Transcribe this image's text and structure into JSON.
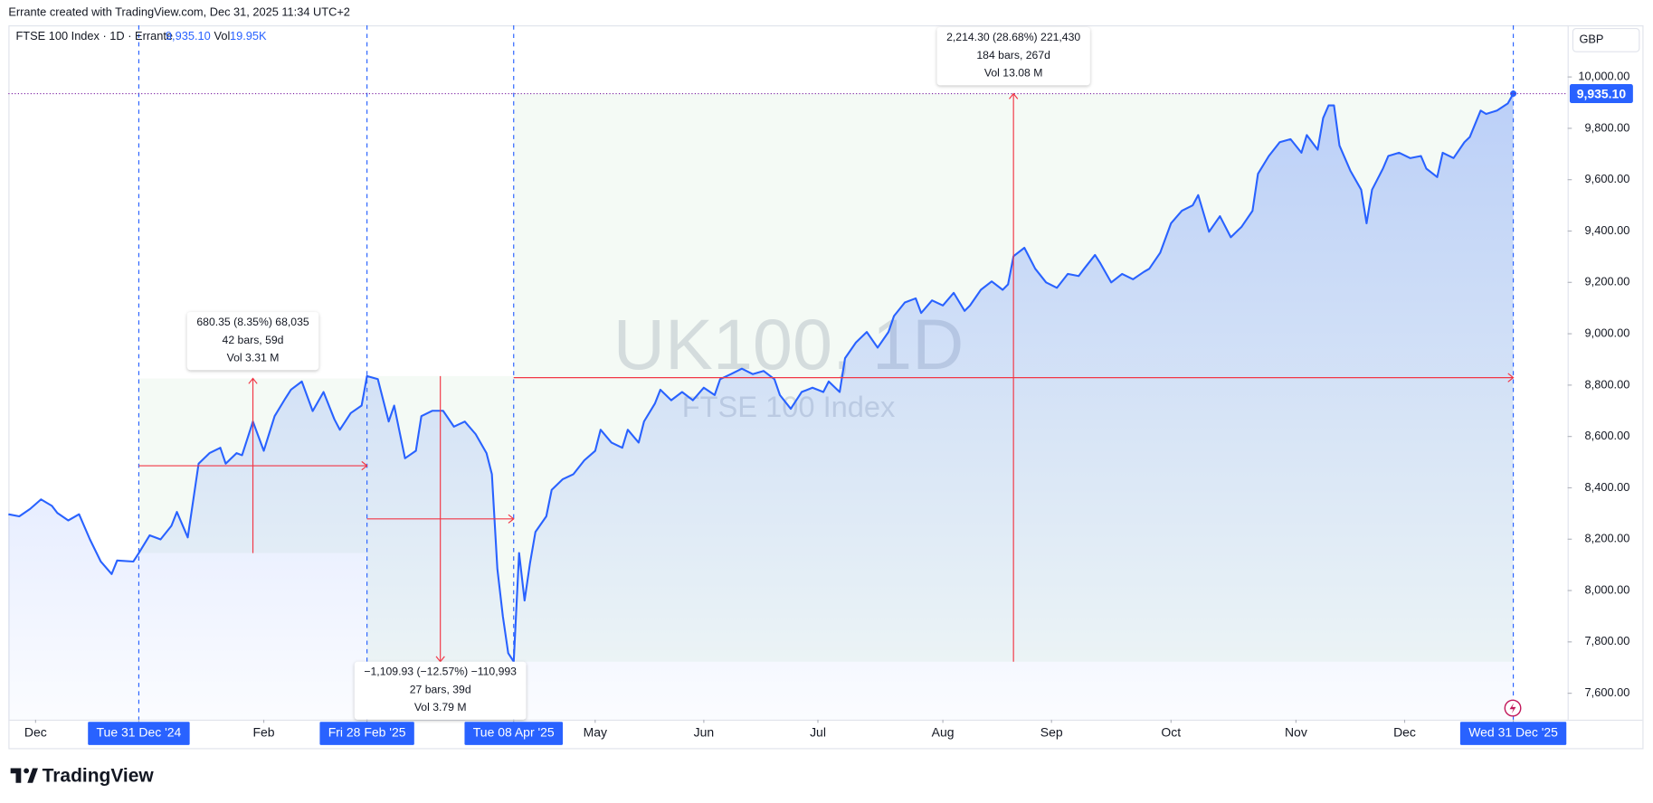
{
  "header": {
    "credit": "Errante created with TradingView.com, Dec 31, 2025 11:34 UTC+2",
    "symbol": "FTSE 100 Index · 1D · Errante",
    "last": "9,935.10",
    "vol_label": "Vol",
    "vol": "19.95K",
    "currency": "GBP",
    "watermark": "UK100, 1D",
    "watermark_sub": "FTSE 100 Index",
    "brand": "TradingView"
  },
  "chart_data": {
    "type": "line",
    "last_price_label": "9,935.10",
    "grid": false,
    "xlim": [
      0,
      287
    ],
    "ylim": [
      7497,
      10201
    ],
    "xticks": [
      {
        "value": 5,
        "label": "Dec"
      },
      {
        "value": 24,
        "label": "Tue 31 Dec '24"
      },
      {
        "value": 47,
        "label": "Feb"
      },
      {
        "value": 66,
        "label": "Fri 28 Feb '25"
      },
      {
        "value": 93,
        "label": "Tue 08 Apr '25"
      },
      {
        "value": 108,
        "label": "May"
      },
      {
        "value": 128,
        "label": "Jun"
      },
      {
        "value": 149,
        "label": "Jul"
      },
      {
        "value": 172,
        "label": "Aug"
      },
      {
        "value": 192,
        "label": "Sep"
      },
      {
        "value": 214,
        "label": "Oct"
      },
      {
        "value": 237,
        "label": "Nov"
      },
      {
        "value": 257,
        "label": "Dec"
      },
      {
        "value": 277,
        "label": "Wed 31 Dec '25"
      }
    ],
    "yticks": [
      {
        "value": 7600,
        "label": "7,600.00"
      },
      {
        "value": 7800,
        "label": "7,800.00"
      },
      {
        "value": 8000,
        "label": "8,000.00"
      },
      {
        "value": 8200,
        "label": "8,200.00"
      },
      {
        "value": 8400,
        "label": "8,400.00"
      },
      {
        "value": 8600,
        "label": "8,600.00"
      },
      {
        "value": 8800,
        "label": "8,800.00"
      },
      {
        "value": 9000,
        "label": "9,000.00"
      },
      {
        "value": 9200,
        "label": "9,200.00"
      },
      {
        "value": 9400,
        "label": "9,400.00"
      },
      {
        "value": 9600,
        "label": "9,600.00"
      },
      {
        "value": 9800,
        "label": "9,800.00"
      },
      {
        "value": 10000,
        "label": "10,000.00"
      }
    ],
    "series": [
      {
        "name": "FTSE 100 Index",
        "color": "#2962ff",
        "x": [
          0,
          2,
          4,
          6,
          8,
          9,
          11,
          13,
          15,
          17,
          19,
          20,
          23,
          24,
          26,
          28,
          30,
          31,
          33,
          35,
          37,
          39,
          40,
          42,
          43,
          45,
          47,
          49,
          51,
          52,
          54,
          56,
          58,
          60,
          61,
          63,
          65,
          66,
          68,
          70,
          71,
          73,
          75,
          76,
          78,
          80,
          82,
          84,
          86,
          88,
          89,
          90,
          91,
          92,
          93,
          94,
          95,
          96,
          97,
          99,
          100,
          102,
          104,
          106,
          108,
          109,
          111,
          113,
          114,
          116,
          117,
          119,
          120,
          122,
          124,
          126,
          128,
          130,
          131,
          133,
          135,
          137,
          139,
          141,
          142,
          144,
          146,
          148,
          150,
          151,
          153,
          154,
          156,
          158,
          160,
          162,
          163,
          165,
          167,
          168,
          170,
          172,
          174,
          176,
          177,
          179,
          181,
          183,
          184,
          185,
          187,
          189,
          191,
          193,
          195,
          197,
          198,
          200,
          201,
          203,
          205,
          207,
          209,
          210,
          212,
          214,
          216,
          218,
          219,
          221,
          223,
          225,
          227,
          229,
          230,
          232,
          234,
          236,
          238,
          239,
          241,
          242,
          243,
          244,
          245,
          247,
          249,
          250,
          251,
          253,
          254,
          256,
          258,
          260,
          261,
          263,
          264,
          266,
          268,
          269,
          271,
          272,
          274,
          276,
          277
        ],
        "values": [
          8297,
          8289,
          8318,
          8355,
          8330,
          8302,
          8273,
          8297,
          8199,
          8113,
          8064,
          8117,
          8113,
          8146,
          8215,
          8199,
          8252,
          8306,
          8207,
          8494,
          8535,
          8556,
          8494,
          8535,
          8527,
          8658,
          8544,
          8679,
          8749,
          8782,
          8814,
          8699,
          8773,
          8667,
          8626,
          8691,
          8720,
          8835,
          8823,
          8658,
          8720,
          8515,
          8544,
          8679,
          8700,
          8700,
          8638,
          8658,
          8609,
          8535,
          8453,
          8084,
          7900,
          7756,
          7723,
          8146,
          7961,
          8105,
          8228,
          8289,
          8392,
          8433,
          8453,
          8507,
          8544,
          8626,
          8576,
          8556,
          8626,
          8576,
          8658,
          8728,
          8782,
          8741,
          8773,
          8741,
          8790,
          8761,
          8823,
          8843,
          8864,
          8843,
          8855,
          8823,
          8761,
          8708,
          8773,
          8790,
          8773,
          8814,
          8773,
          8905,
          8966,
          9007,
          8946,
          9007,
          9069,
          9122,
          9138,
          9081,
          9130,
          9110,
          9159,
          9089,
          9110,
          9171,
          9204,
          9171,
          9192,
          9302,
          9335,
          9253,
          9200,
          9179,
          9233,
          9225,
          9253,
          9307,
          9274,
          9200,
          9233,
          9212,
          9241,
          9253,
          9315,
          9430,
          9479,
          9500,
          9540,
          9397,
          9458,
          9376,
          9417,
          9479,
          9623,
          9692,
          9746,
          9758,
          9705,
          9774,
          9717,
          9840,
          9889,
          9889,
          9733,
          9635,
          9561,
          9430,
          9561,
          9643,
          9692,
          9705,
          9684,
          9692,
          9643,
          9610,
          9705,
          9684,
          9746,
          9766,
          9869,
          9856,
          9869,
          9897,
          9935.1
        ]
      }
    ],
    "measurements": [
      {
        "from_x": 24,
        "to_x": 66,
        "from": 8146,
        "to": 8826,
        "lines": [
          "680.35 (8.35%) 68,035",
          "42 bars, 59d",
          "Vol 3.31 M"
        ]
      },
      {
        "from_x": 66,
        "to_x": 93,
        "from": 8835,
        "to": 7723,
        "lines": [
          "−1,109.93 (−12.57%) −110,993",
          "27 bars, 39d",
          "Vol 3.79 M"
        ]
      },
      {
        "from_x": 93,
        "to_x": 277,
        "from": 7723,
        "to": 9935.1,
        "lines": [
          "2,214.30 (28.68%) 221,430",
          "184 bars, 267d",
          "Vol 13.08 M"
        ]
      }
    ]
  }
}
